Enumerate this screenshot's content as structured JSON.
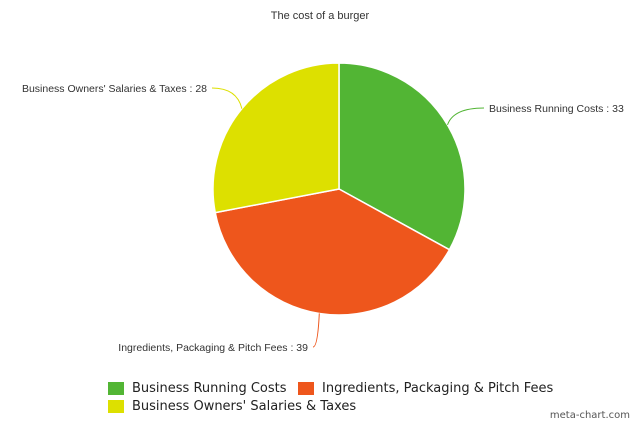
{
  "chart_data": {
    "type": "pie",
    "title": "The cost of a burger",
    "slices": [
      {
        "label": "Business Running Costs",
        "value": 33,
        "color": "#52b534"
      },
      {
        "label": "Ingredients, Packaging & Pitch Fees",
        "value": 39,
        "color": "#ee561c"
      },
      {
        "label": "Business Owners' Salaries & Taxes",
        "value": 28,
        "color": "#dde000"
      }
    ],
    "slice_label_separator": " : ",
    "legend": {
      "placement": "bottom",
      "items": [
        "Business Running Costs",
        "Ingredients, Packaging & Pitch Fees",
        "Business Owners' Salaries & Taxes"
      ]
    }
  },
  "credit": "meta-chart.com"
}
